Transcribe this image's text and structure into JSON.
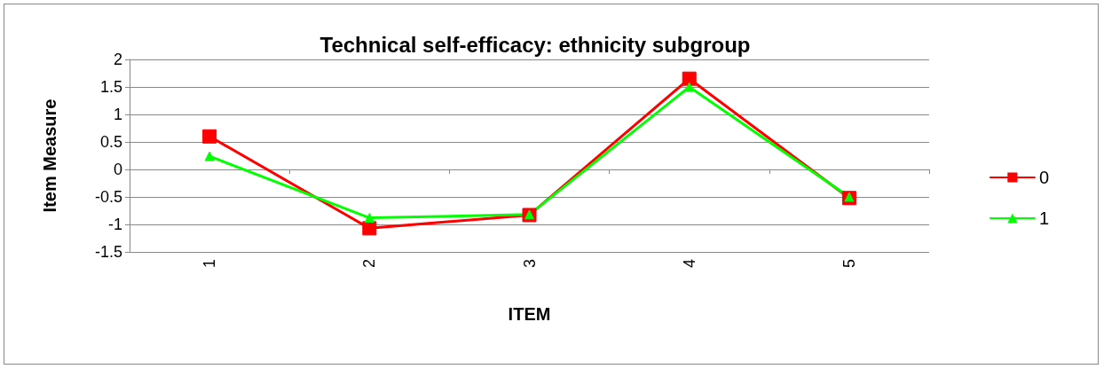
{
  "chart_data": {
    "type": "line",
    "title": "Technical self-efficacy: ethnicity subgroup",
    "xlabel": "ITEM",
    "ylabel": "Item Measure",
    "categories": [
      "1",
      "2",
      "3",
      "4",
      "5"
    ],
    "series": [
      {
        "name": "0",
        "color": "#ff0000",
        "marker": "square",
        "values": [
          0.6,
          -1.07,
          -0.83,
          1.65,
          -0.52
        ]
      },
      {
        "name": "1",
        "color": "#00ff00",
        "marker": "triangle",
        "values": [
          0.24,
          -0.88,
          -0.82,
          1.5,
          -0.5
        ]
      }
    ],
    "ylim": [
      -1.5,
      2
    ],
    "yticks": [
      -1.5,
      -1,
      -0.5,
      0,
      0.5,
      1,
      1.5,
      2
    ],
    "grid": "y",
    "legend": "right"
  }
}
